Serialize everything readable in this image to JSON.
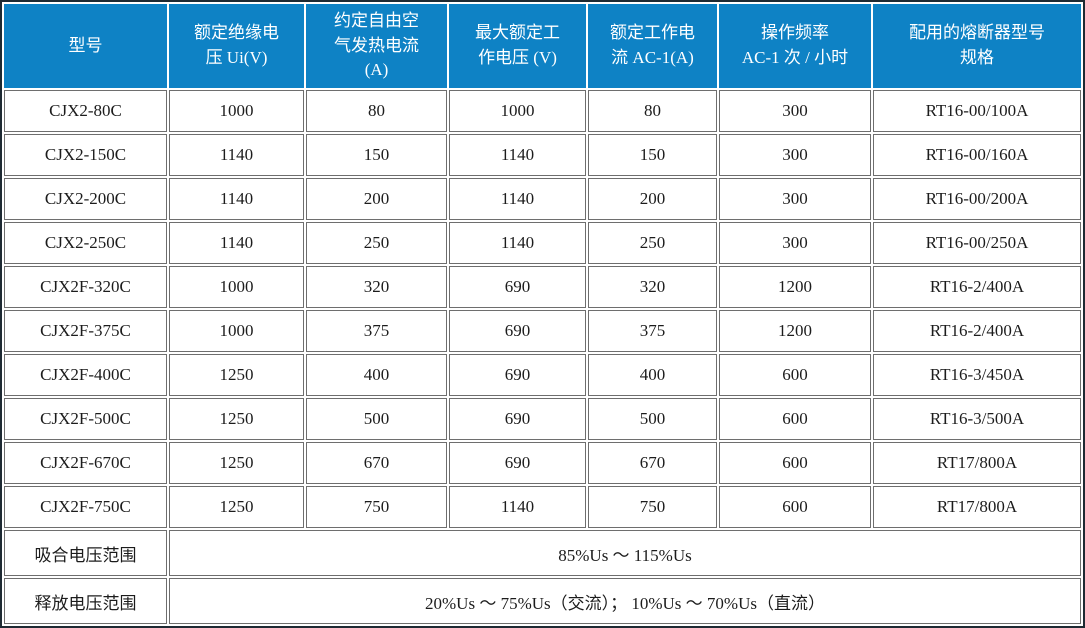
{
  "table": {
    "headers": [
      "型号",
      "额定绝缘电\n压 Ui(V)",
      "约定自由空\n气发热电流\n(A)",
      "最大额定工\n作电压 (V)",
      "额定工作电\n流 AC-1(A)",
      "操作频率\nAC-1 次 / 小时",
      "配用的熔断器型号\n规格"
    ],
    "rows": [
      {
        "cells": [
          "CJX2-80C",
          "1000",
          "80",
          "1000",
          "80",
          "300",
          "RT16-00/100A"
        ]
      },
      {
        "cells": [
          "CJX2-150C",
          "1140",
          "150",
          "1140",
          "150",
          "300",
          "RT16-00/160A"
        ]
      },
      {
        "cells": [
          "CJX2-200C",
          "1140",
          "200",
          "1140",
          "200",
          "300",
          "RT16-00/200A"
        ]
      },
      {
        "cells": [
          "CJX2-250C",
          "1140",
          "250",
          "1140",
          "250",
          "300",
          "RT16-00/250A"
        ]
      },
      {
        "cells": [
          "CJX2F-320C",
          "1000",
          "320",
          "690",
          "320",
          "1200",
          "RT16-2/400A"
        ]
      },
      {
        "cells": [
          "CJX2F-375C",
          "1000",
          "375",
          "690",
          "375",
          "1200",
          "RT16-2/400A"
        ]
      },
      {
        "cells": [
          "CJX2F-400C",
          "1250",
          "400",
          "690",
          "400",
          "600",
          "RT16-3/450A"
        ]
      },
      {
        "cells": [
          "CJX2F-500C",
          "1250",
          "500",
          "690",
          "500",
          "600",
          "RT16-3/500A"
        ]
      },
      {
        "cells": [
          "CJX2F-670C",
          "1250",
          "670",
          "690",
          "670",
          "600",
          "RT17/800A"
        ]
      },
      {
        "cells": [
          "CJX2F-750C",
          "1250",
          "750",
          "1140",
          "750",
          "600",
          "RT17/800A"
        ]
      }
    ],
    "footer": [
      {
        "label": "吸合电压范围",
        "value": "85%Us ～ 115%Us"
      },
      {
        "label": "释放电压范围",
        "value": "20%Us ～ 75%Us（交流）； 10%Us ～ 70%Us（直流）"
      }
    ],
    "colors": {
      "header_bg": "#0e82c5",
      "header_text": "#ffffff",
      "body_text": "#1c1c1c",
      "outer_border": "#1e2a33",
      "cell_border": "#6e6e6e"
    }
  }
}
